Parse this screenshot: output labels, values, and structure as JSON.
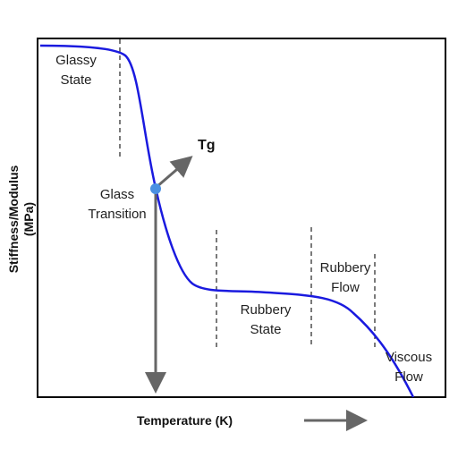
{
  "diagram": {
    "y_axis_label_line1": "Stiffness/Modulus",
    "y_axis_label_line2": "(MPa)",
    "x_axis_label": "Temperature (K)",
    "tg_label": "Tg",
    "regions": {
      "glassy_state": [
        "Glassy",
        "State"
      ],
      "glass_transition": [
        "Glass",
        "Transition"
      ],
      "rubbery_state": [
        "Rubbery",
        "State"
      ],
      "rubbery_flow": [
        "Rubbery",
        "Flow"
      ],
      "viscous_flow": [
        "Viscous",
        "Flow"
      ]
    },
    "colors": {
      "curve": "#1a1adf",
      "marker": "#4a90e2",
      "arrow": "#666666",
      "frame": "#000000"
    }
  }
}
